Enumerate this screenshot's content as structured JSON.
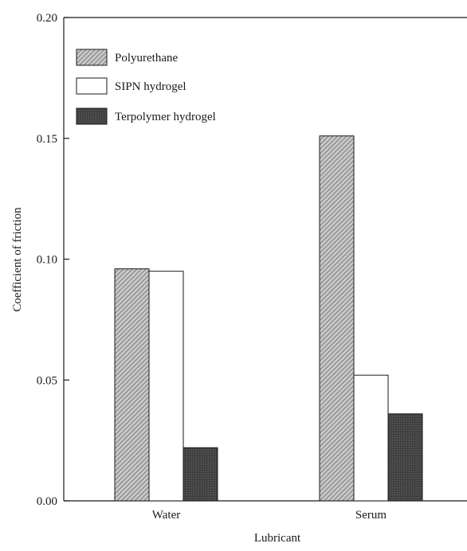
{
  "chart_data": {
    "type": "bar",
    "xlabel": "Lubricant",
    "ylabel": "Coefficient of friction",
    "categories": [
      "Water",
      "Serum"
    ],
    "series": [
      {
        "name": "Polyurethane",
        "values": [
          0.096,
          0.151
        ],
        "fill": "hatch-light"
      },
      {
        "name": "SIPN hydrogel",
        "values": [
          0.095,
          0.052
        ],
        "fill": "white"
      },
      {
        "name": "Terpolymer hydrogel",
        "values": [
          0.022,
          0.036
        ],
        "fill": "dark"
      }
    ],
    "ylim": [
      0,
      0.2
    ],
    "yticks": [
      "0.00",
      "0.05",
      "0.10",
      "0.15",
      "0.20"
    ],
    "legend_position": "top-left",
    "grid": false
  },
  "colors": {
    "axis": "#1a1a1a",
    "bar_outline": "#1a1a1a",
    "hatch_light_bg": "#c8c8c8",
    "hatch_light_line": "#5a5a5a",
    "dark_fill": "#4a4a4a",
    "white_fill": "#ffffff"
  }
}
